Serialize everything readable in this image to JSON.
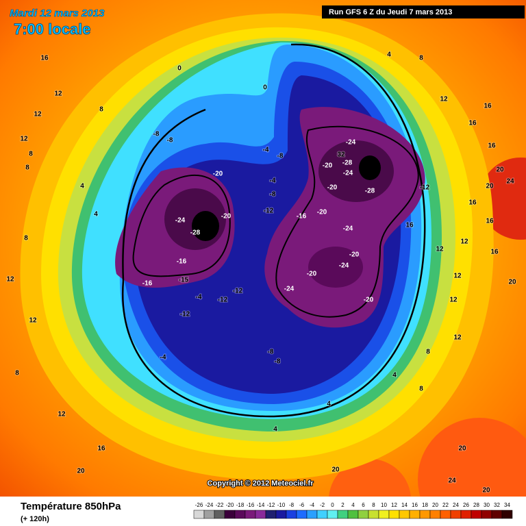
{
  "header": {
    "date": "Mardi 12 mars 2013",
    "time": "7:00 locale",
    "run": "Run GFS 6 Z du Jeudi 7 mars 2013"
  },
  "map": {
    "copyright": "Copyright © 2012 Meteociel.fr",
    "labels": [
      16,
      12,
      12,
      8,
      12,
      8,
      8,
      4,
      4,
      8,
      12,
      12,
      -4,
      8,
      12,
      16,
      20,
      0,
      0,
      4,
      8,
      12,
      16,
      16,
      16,
      20,
      24,
      20,
      16,
      16,
      12,
      12,
      16,
      12,
      20,
      12,
      12,
      8,
      8,
      4,
      4,
      4,
      20,
      20,
      24,
      20,
      -8,
      -8,
      -4,
      -8,
      -20,
      -4,
      -8,
      -12,
      -24,
      -28,
      -20,
      -16,
      -20,
      -24,
      32,
      -28,
      -20,
      -24,
      -20,
      -28,
      -12,
      -24,
      -16,
      -16,
      -15,
      -4,
      -12,
      -12,
      -12,
      -20,
      -24,
      -20,
      -24,
      -20,
      -8,
      -8,
      16
    ]
  },
  "footer": {
    "title": "Température 850hPa",
    "lead": "(+ 120h)"
  },
  "colorbar": {
    "values": [
      -26,
      -24,
      -22,
      -20,
      -18,
      -16,
      -14,
      -12,
      -10,
      -8,
      -6,
      -4,
      -2,
      0,
      2,
      4,
      6,
      8,
      10,
      12,
      14,
      16,
      18,
      20,
      22,
      24,
      26,
      28,
      30,
      32,
      34
    ],
    "colors": [
      "#d8d8d8",
      "#a0a0a0",
      "#606060",
      "#3a003a",
      "#5a0a5a",
      "#7a1a7a",
      "#8a2a9a",
      "#202070",
      "#1a1aa0",
      "#1a40e0",
      "#1e6cff",
      "#2aa0ff",
      "#40d0ff",
      "#60f0f0",
      "#40d080",
      "#50c040",
      "#90d040",
      "#c8e030",
      "#f0f020",
      "#ffe000",
      "#ffc800",
      "#ffb000",
      "#ff9800",
      "#ff8000",
      "#ff6000",
      "#f04000",
      "#e02000",
      "#c00000",
      "#900000",
      "#600000",
      "#300000"
    ]
  }
}
